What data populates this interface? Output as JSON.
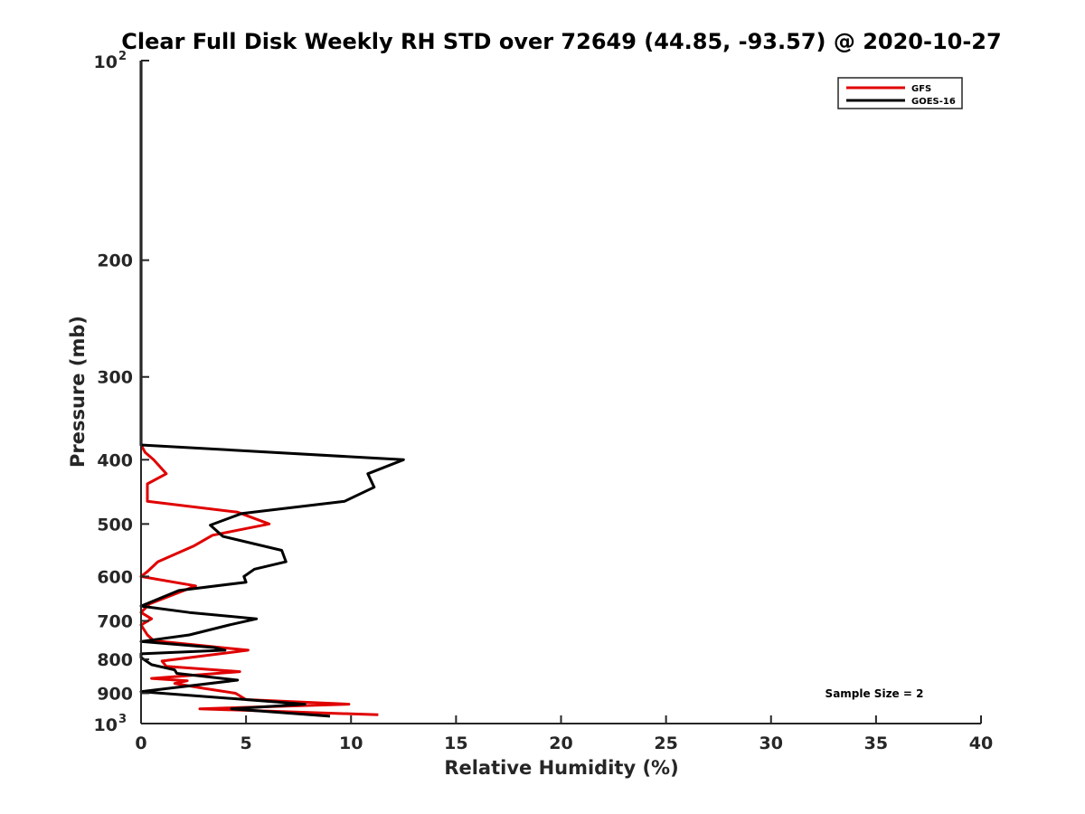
{
  "chart_data": {
    "type": "line",
    "title": "Clear Full Disk Weekly RH STD over 72649 (44.85, -93.57) @ 2020-10-27",
    "xlabel": "Relative Humidity (%)",
    "ylabel": "Pressure (mb)",
    "xlim": [
      0,
      40
    ],
    "ylim": [
      100,
      1000
    ],
    "y_scale": "log",
    "y_reversed": true,
    "x_ticks": [
      "0",
      "5",
      "10",
      "15",
      "20",
      "25",
      "30",
      "35",
      "40"
    ],
    "y_ticks": [
      {
        "value": 100,
        "base": "10",
        "exp": "2"
      },
      {
        "value": 200,
        "label": "200"
      },
      {
        "value": 300,
        "label": "300"
      },
      {
        "value": 400,
        "label": "400"
      },
      {
        "value": 500,
        "label": "500"
      },
      {
        "value": 600,
        "label": "600"
      },
      {
        "value": 700,
        "label": "700"
      },
      {
        "value": 800,
        "label": "800"
      },
      {
        "value": 900,
        "label": "900"
      },
      {
        "value": 1000,
        "base": "10",
        "exp": "3"
      }
    ],
    "grid": false,
    "legend_position": "top-right",
    "annotation": "Sample Size = 2",
    "series": [
      {
        "name": "GFS",
        "color": "#e00000",
        "points": [
          [
            0.0,
            100
          ],
          [
            0.0,
            380
          ],
          [
            0.2,
            390
          ],
          [
            0.6,
            400
          ],
          [
            1.2,
            420
          ],
          [
            0.3,
            435
          ],
          [
            0.3,
            462
          ],
          [
            4.6,
            480
          ],
          [
            6.1,
            500
          ],
          [
            3.4,
            520
          ],
          [
            2.5,
            540
          ],
          [
            0.8,
            570
          ],
          [
            0.3,
            590
          ],
          [
            0.0,
            600
          ],
          [
            2.6,
            620
          ],
          [
            0.4,
            660
          ],
          [
            0.0,
            680
          ],
          [
            0.5,
            695
          ],
          [
            0.0,
            710
          ],
          [
            0.3,
            735
          ],
          [
            0.6,
            750
          ],
          [
            5.1,
            775
          ],
          [
            1.0,
            805
          ],
          [
            1.2,
            820
          ],
          [
            4.7,
            835
          ],
          [
            0.5,
            855
          ],
          [
            2.2,
            862
          ],
          [
            1.6,
            870
          ],
          [
            3.0,
            885
          ],
          [
            4.5,
            900
          ],
          [
            5.0,
            920
          ],
          [
            9.9,
            935
          ],
          [
            2.8,
            950
          ],
          [
            11.3,
            970
          ]
        ]
      },
      {
        "name": "GOES-16",
        "color": "#000000",
        "points": [
          [
            0.0,
            100
          ],
          [
            0.0,
            380
          ],
          [
            12.5,
            400
          ],
          [
            10.8,
            420
          ],
          [
            11.1,
            440
          ],
          [
            9.7,
            462
          ],
          [
            4.8,
            482
          ],
          [
            3.3,
            502
          ],
          [
            3.9,
            522
          ],
          [
            6.7,
            548
          ],
          [
            6.9,
            570
          ],
          [
            5.4,
            585
          ],
          [
            4.9,
            600
          ],
          [
            5.0,
            612
          ],
          [
            1.8,
            630
          ],
          [
            0.0,
            665
          ],
          [
            2.3,
            680
          ],
          [
            5.5,
            695
          ],
          [
            4.2,
            710
          ],
          [
            2.3,
            735
          ],
          [
            0.0,
            752
          ],
          [
            3.5,
            768
          ],
          [
            4.0,
            775
          ],
          [
            0.0,
            785
          ],
          [
            0.0,
            795
          ],
          [
            0.5,
            815
          ],
          [
            1.6,
            830
          ],
          [
            1.7,
            840
          ],
          [
            4.6,
            860
          ],
          [
            0.0,
            895
          ],
          [
            5.0,
            920
          ],
          [
            7.8,
            935
          ],
          [
            4.3,
            950
          ],
          [
            9.0,
            975
          ]
        ]
      }
    ]
  }
}
